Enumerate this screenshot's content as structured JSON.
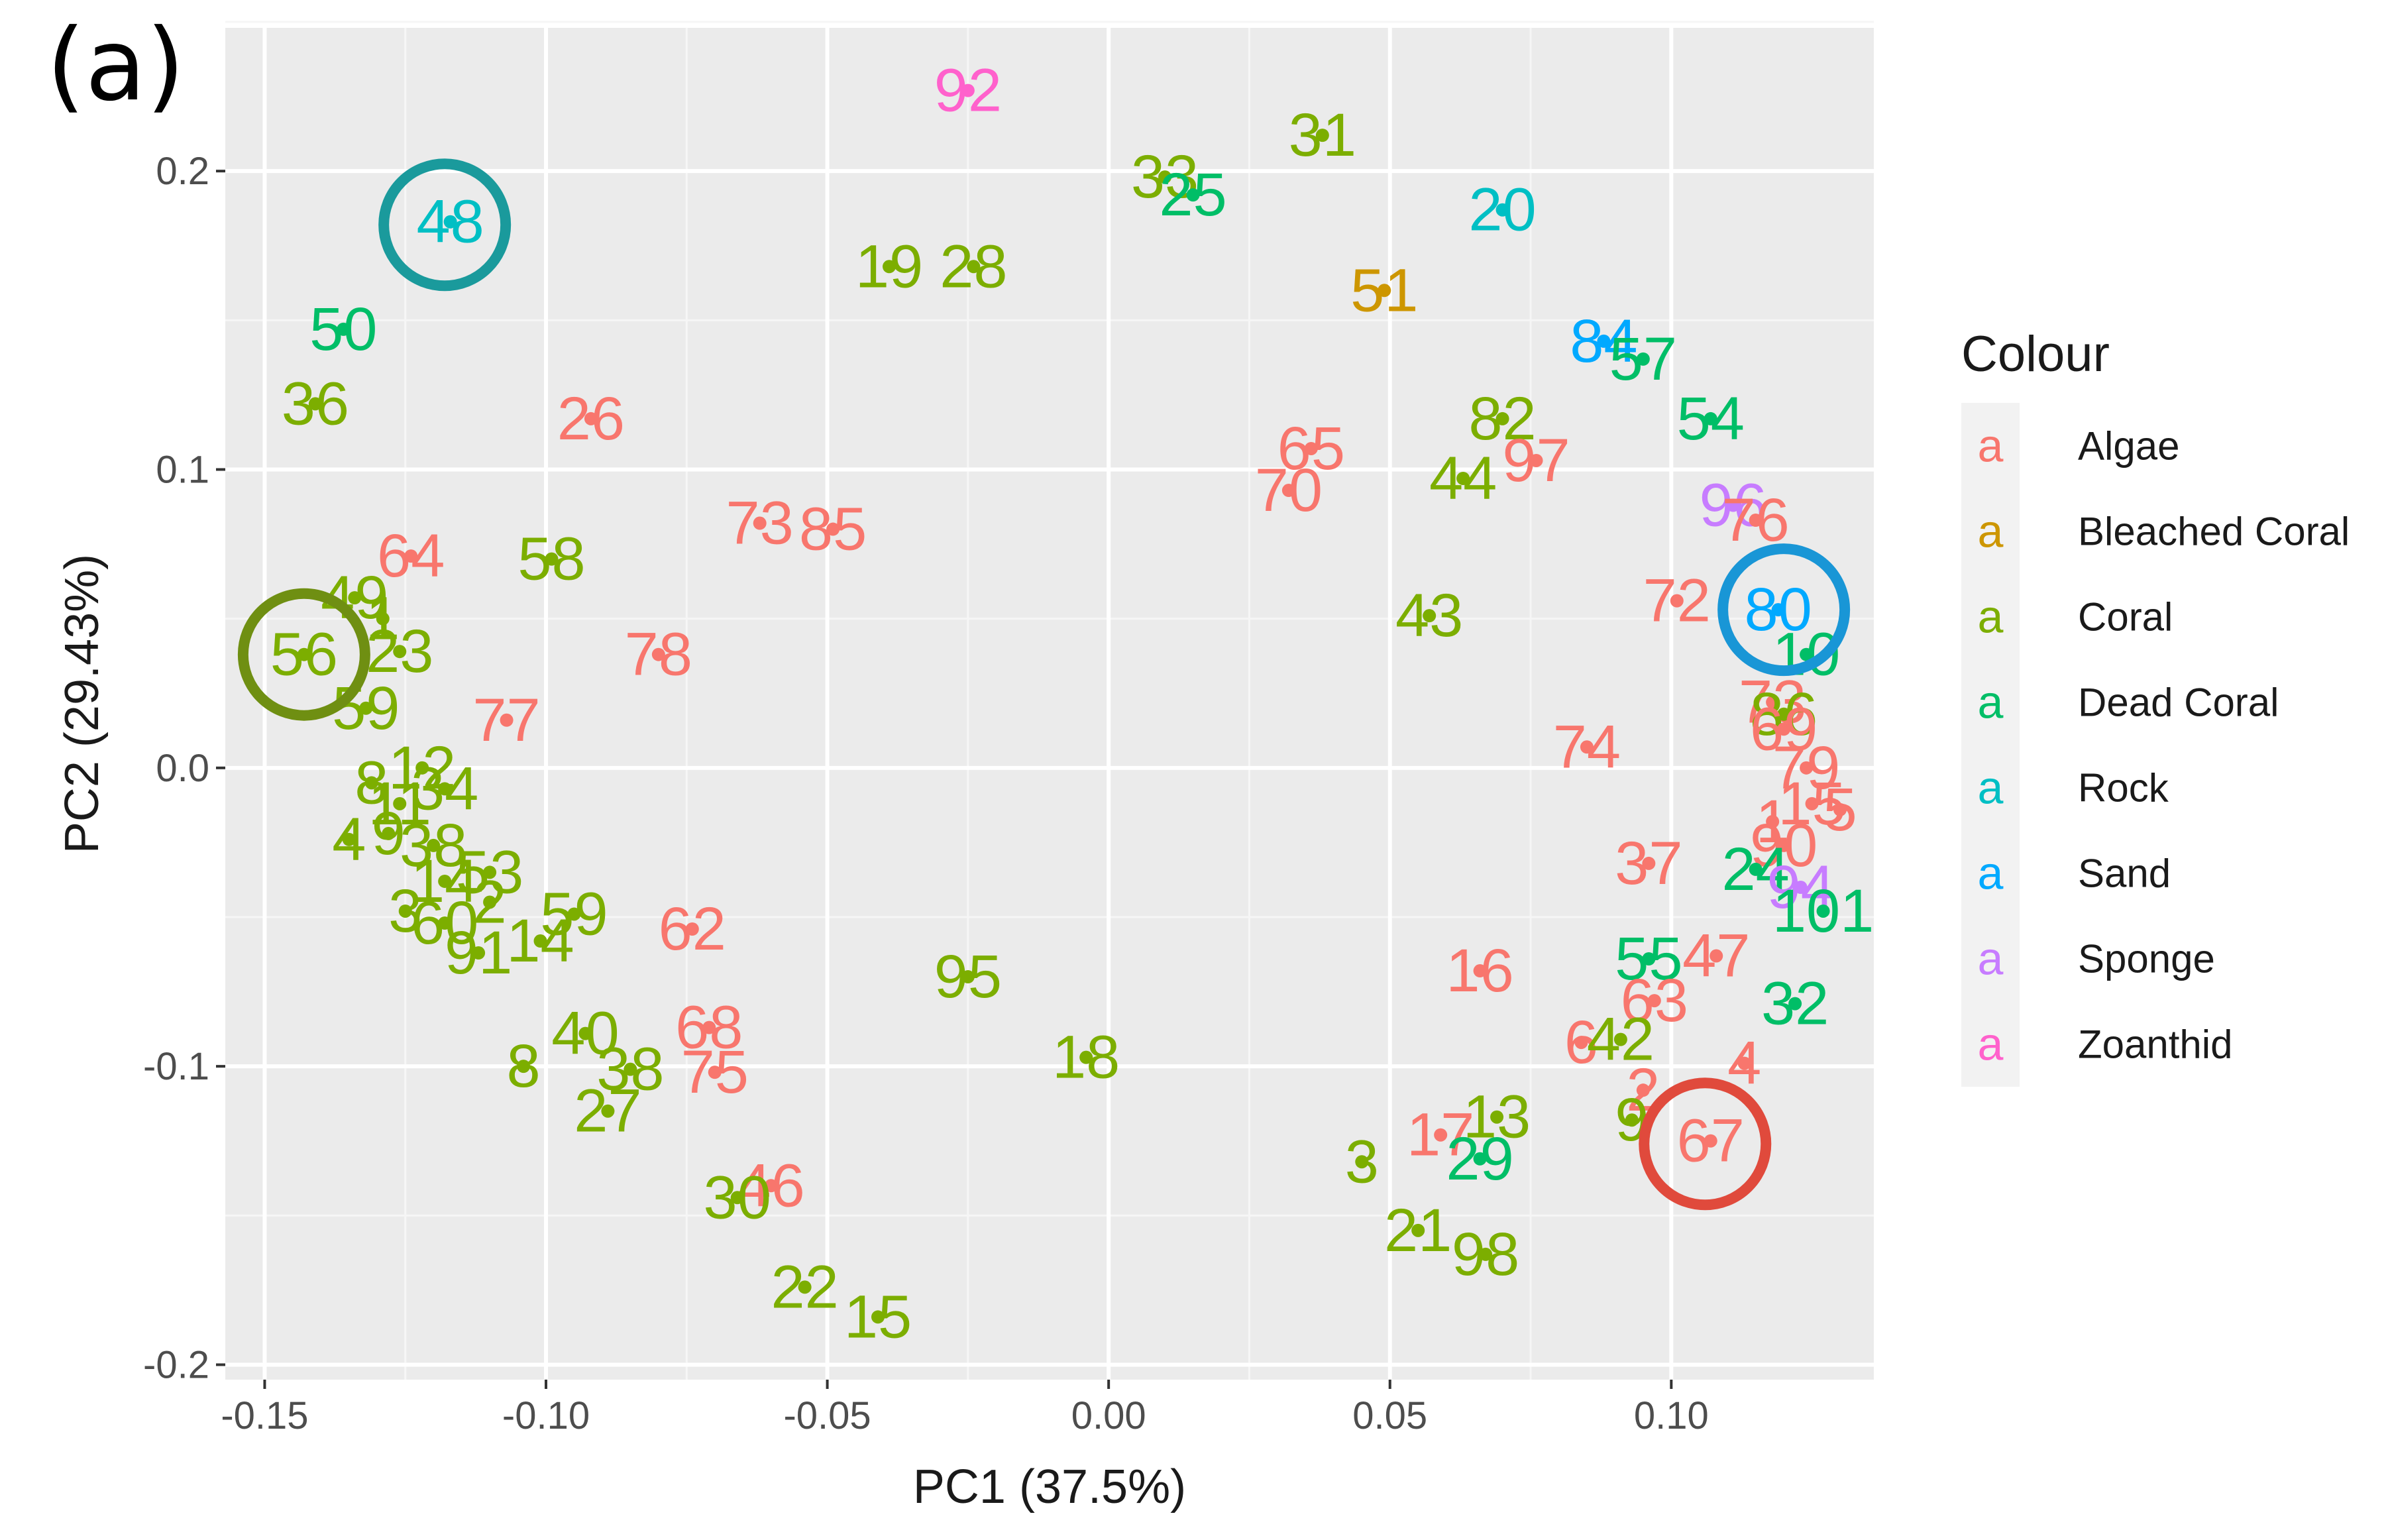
{
  "panel_label": "(a)",
  "chart_data": {
    "type": "scatter",
    "xlabel": "PC1 (37.5%)",
    "ylabel": "PC2 (29.43%)",
    "xlim": [
      -0.157,
      0.136
    ],
    "ylim": [
      -0.205,
      0.248
    ],
    "x_ticks": [
      -0.15,
      -0.1,
      -0.05,
      0.0,
      0.05,
      0.1
    ],
    "x_tick_labels": [
      "-0.15",
      "-0.10",
      "-0.05",
      "0.00",
      "0.05",
      "0.10"
    ],
    "y_ticks": [
      -0.2,
      -0.1,
      0.0,
      0.1,
      0.2
    ],
    "y_tick_labels": [
      "-0.2",
      "-0.1",
      "0.0",
      "0.1",
      "0.2"
    ],
    "grid": true,
    "legend": {
      "title": "Colour",
      "position": "right",
      "key_glyph": "a",
      "entries": [
        {
          "label": "Algae",
          "color": "#F8766D"
        },
        {
          "label": "Bleached Coral",
          "color": "#CD9600"
        },
        {
          "label": "Coral",
          "color": "#7CAE00"
        },
        {
          "label": "Dead Coral",
          "color": "#00BE67"
        },
        {
          "label": "Rock",
          "color": "#00BFC4"
        },
        {
          "label": "Sand",
          "color": "#00A9FF"
        },
        {
          "label": "Sponge",
          "color": "#C77CFF"
        },
        {
          "label": "Zoanthid",
          "color": "#FF61CC"
        }
      ]
    },
    "highlight_circles": [
      {
        "label": "48",
        "x": -0.118,
        "y": 0.182,
        "color": "#1a9a9c"
      },
      {
        "label": "56",
        "x": -0.143,
        "y": 0.038,
        "color": "#6f8f12"
      },
      {
        "label": "80",
        "x": 0.12,
        "y": 0.053,
        "color": "#1996d6"
      },
      {
        "label": "67",
        "x": 0.106,
        "y": -0.126,
        "color": "#e04a3c"
      }
    ],
    "points": [
      {
        "label": "92",
        "x": -0.025,
        "y": 0.227,
        "group": "Zoanthid"
      },
      {
        "label": "31",
        "x": 0.038,
        "y": 0.212,
        "group": "Coral"
      },
      {
        "label": "33",
        "x": 0.01,
        "y": 0.198,
        "group": "Coral"
      },
      {
        "label": "25",
        "x": 0.015,
        "y": 0.192,
        "group": "Dead Coral"
      },
      {
        "label": "48",
        "x": -0.117,
        "y": 0.183,
        "group": "Rock"
      },
      {
        "label": "20",
        "x": 0.07,
        "y": 0.187,
        "group": "Rock"
      },
      {
        "label": "19",
        "x": -0.039,
        "y": 0.168,
        "group": "Coral"
      },
      {
        "label": "28",
        "x": -0.024,
        "y": 0.168,
        "group": "Coral"
      },
      {
        "label": "51",
        "x": 0.049,
        "y": 0.16,
        "group": "Bleached Coral"
      },
      {
        "label": "50",
        "x": -0.136,
        "y": 0.147,
        "group": "Dead Coral"
      },
      {
        "label": "84",
        "x": 0.088,
        "y": 0.143,
        "group": "Sand"
      },
      {
        "label": "57",
        "x": 0.095,
        "y": 0.137,
        "group": "Dead Coral"
      },
      {
        "label": "36",
        "x": -0.141,
        "y": 0.122,
        "group": "Coral"
      },
      {
        "label": "26",
        "x": -0.092,
        "y": 0.117,
        "group": "Algae"
      },
      {
        "label": "82",
        "x": 0.07,
        "y": 0.117,
        "group": "Coral"
      },
      {
        "label": "54",
        "x": 0.107,
        "y": 0.117,
        "group": "Dead Coral"
      },
      {
        "label": "65",
        "x": 0.036,
        "y": 0.107,
        "group": "Algae"
      },
      {
        "label": "97",
        "x": 0.076,
        "y": 0.103,
        "group": "Algae"
      },
      {
        "label": "44",
        "x": 0.063,
        "y": 0.097,
        "group": "Coral"
      },
      {
        "label": "70",
        "x": 0.032,
        "y": 0.093,
        "group": "Algae"
      },
      {
        "label": "96",
        "x": 0.111,
        "y": 0.088,
        "group": "Sponge"
      },
      {
        "label": "76",
        "x": 0.115,
        "y": 0.083,
        "group": "Algae"
      },
      {
        "label": "73",
        "x": -0.062,
        "y": 0.082,
        "group": "Algae"
      },
      {
        "label": "85",
        "x": -0.049,
        "y": 0.08,
        "group": "Algae"
      },
      {
        "label": "64",
        "x": -0.124,
        "y": 0.071,
        "group": "Algae"
      },
      {
        "label": "58",
        "x": -0.099,
        "y": 0.07,
        "group": "Coral"
      },
      {
        "label": "49",
        "x": -0.134,
        "y": 0.057,
        "group": "Coral"
      },
      {
        "label": "72",
        "x": 0.101,
        "y": 0.056,
        "group": "Algae"
      },
      {
        "label": "80",
        "x": 0.119,
        "y": 0.053,
        "group": "Sand"
      },
      {
        "label": "43",
        "x": 0.057,
        "y": 0.051,
        "group": "Coral"
      },
      {
        "label": "1",
        "x": -0.129,
        "y": 0.05,
        "group": "Coral"
      },
      {
        "label": "10",
        "x": 0.124,
        "y": 0.038,
        "group": "Dead Coral"
      },
      {
        "label": "56",
        "x": -0.143,
        "y": 0.038,
        "group": "Coral"
      },
      {
        "label": "23",
        "x": -0.126,
        "y": 0.039,
        "group": "Coral"
      },
      {
        "label": "78",
        "x": -0.08,
        "y": 0.038,
        "group": "Algae"
      },
      {
        "label": "73",
        "x": 0.118,
        "y": 0.022,
        "group": "Algae"
      },
      {
        "label": "86",
        "x": 0.12,
        "y": 0.018,
        "group": "Coral"
      },
      {
        "label": "69",
        "x": 0.12,
        "y": 0.013,
        "group": "Algae"
      },
      {
        "label": "77",
        "x": -0.107,
        "y": 0.016,
        "group": "Algae"
      },
      {
        "label": "59",
        "x": -0.132,
        "y": 0.02,
        "group": "Coral"
      },
      {
        "label": "74",
        "x": 0.085,
        "y": 0.007,
        "group": "Algae"
      },
      {
        "label": "79",
        "x": 0.124,
        "y": 0.0,
        "group": "Algae"
      },
      {
        "label": "12",
        "x": -0.122,
        "y": 0.0,
        "group": "Coral"
      },
      {
        "label": "8",
        "x": -0.131,
        "y": -0.005,
        "group": "Coral"
      },
      {
        "label": "34",
        "x": -0.118,
        "y": -0.007,
        "group": "Coral"
      },
      {
        "label": "11",
        "x": -0.126,
        "y": -0.012,
        "group": "Coral"
      },
      {
        "label": "15",
        "x": 0.125,
        "y": -0.012,
        "group": "Algae"
      },
      {
        "label": "5",
        "x": 0.13,
        "y": -0.014,
        "group": "Algae"
      },
      {
        "label": "1",
        "x": 0.118,
        "y": -0.018,
        "group": "Algae"
      },
      {
        "label": "4",
        "x": -0.135,
        "y": -0.024,
        "group": "Coral"
      },
      {
        "label": "9",
        "x": -0.128,
        "y": -0.022,
        "group": "Coral"
      },
      {
        "label": "38",
        "x": -0.12,
        "y": -0.026,
        "group": "Coral"
      },
      {
        "label": "90",
        "x": 0.12,
        "y": -0.026,
        "group": "Algae"
      },
      {
        "label": "37",
        "x": 0.096,
        "y": -0.032,
        "group": "Algae"
      },
      {
        "label": "53",
        "x": -0.11,
        "y": -0.035,
        "group": "Coral"
      },
      {
        "label": "14",
        "x": -0.118,
        "y": -0.038,
        "group": "Coral"
      },
      {
        "label": "24",
        "x": 0.115,
        "y": -0.034,
        "group": "Dead Coral"
      },
      {
        "label": "94",
        "x": 0.123,
        "y": -0.04,
        "group": "Sponge"
      },
      {
        "label": "2",
        "x": -0.11,
        "y": -0.045,
        "group": "Coral"
      },
      {
        "label": "101",
        "x": 0.127,
        "y": -0.048,
        "group": "Dead Coral"
      },
      {
        "label": "3",
        "x": -0.125,
        "y": -0.048,
        "group": "Coral"
      },
      {
        "label": "60",
        "x": -0.118,
        "y": -0.052,
        "group": "Coral"
      },
      {
        "label": "59",
        "x": -0.095,
        "y": -0.049,
        "group": "Coral"
      },
      {
        "label": "62",
        "x": -0.074,
        "y": -0.054,
        "group": "Algae"
      },
      {
        "label": "14",
        "x": -0.101,
        "y": -0.058,
        "group": "Coral"
      },
      {
        "label": "91",
        "x": -0.112,
        "y": -0.062,
        "group": "Coral"
      },
      {
        "label": "55",
        "x": 0.096,
        "y": -0.064,
        "group": "Dead Coral"
      },
      {
        "label": "47",
        "x": 0.108,
        "y": -0.063,
        "group": "Algae"
      },
      {
        "label": "95",
        "x": -0.025,
        "y": -0.07,
        "group": "Coral"
      },
      {
        "label": "16",
        "x": 0.066,
        "y": -0.068,
        "group": "Algae"
      },
      {
        "label": "32",
        "x": 0.122,
        "y": -0.079,
        "group": "Dead Coral"
      },
      {
        "label": "63",
        "x": 0.097,
        "y": -0.078,
        "group": "Algae"
      },
      {
        "label": "40",
        "x": -0.093,
        "y": -0.089,
        "group": "Coral"
      },
      {
        "label": "68",
        "x": -0.071,
        "y": -0.087,
        "group": "Algae"
      },
      {
        "label": "6",
        "x": 0.084,
        "y": -0.092,
        "group": "Algae"
      },
      {
        "label": "42",
        "x": 0.091,
        "y": -0.091,
        "group": "Coral"
      },
      {
        "label": "18",
        "x": -0.004,
        "y": -0.097,
        "group": "Coral"
      },
      {
        "label": "8",
        "x": -0.104,
        "y": -0.1,
        "group": "Coral"
      },
      {
        "label": "4",
        "x": 0.113,
        "y": -0.099,
        "group": "Algae"
      },
      {
        "label": "75",
        "x": -0.07,
        "y": -0.102,
        "group": "Algae"
      },
      {
        "label": "38",
        "x": -0.085,
        "y": -0.101,
        "group": "Coral"
      },
      {
        "label": "27",
        "x": -0.089,
        "y": -0.115,
        "group": "Coral"
      },
      {
        "label": "2",
        "x": 0.095,
        "y": -0.108,
        "group": "Algae"
      },
      {
        "label": "13",
        "x": 0.069,
        "y": -0.117,
        "group": "Coral"
      },
      {
        "label": "9",
        "x": 0.093,
        "y": -0.118,
        "group": "Coral"
      },
      {
        "label": "17",
        "x": 0.059,
        "y": -0.123,
        "group": "Algae"
      },
      {
        "label": "67",
        "x": 0.107,
        "y": -0.125,
        "group": "Algae"
      },
      {
        "label": "29",
        "x": 0.066,
        "y": -0.131,
        "group": "Dead Coral"
      },
      {
        "label": "3",
        "x": 0.045,
        "y": -0.132,
        "group": "Coral"
      },
      {
        "label": "46",
        "x": -0.06,
        "y": -0.14,
        "group": "Algae"
      },
      {
        "label": "30",
        "x": -0.066,
        "y": -0.144,
        "group": "Coral"
      },
      {
        "label": "21",
        "x": 0.055,
        "y": -0.155,
        "group": "Coral"
      },
      {
        "label": "98",
        "x": 0.067,
        "y": -0.163,
        "group": "Coral"
      },
      {
        "label": "22",
        "x": -0.054,
        "y": -0.174,
        "group": "Coral"
      },
      {
        "label": "15",
        "x": -0.041,
        "y": -0.184,
        "group": "Coral"
      }
    ]
  }
}
